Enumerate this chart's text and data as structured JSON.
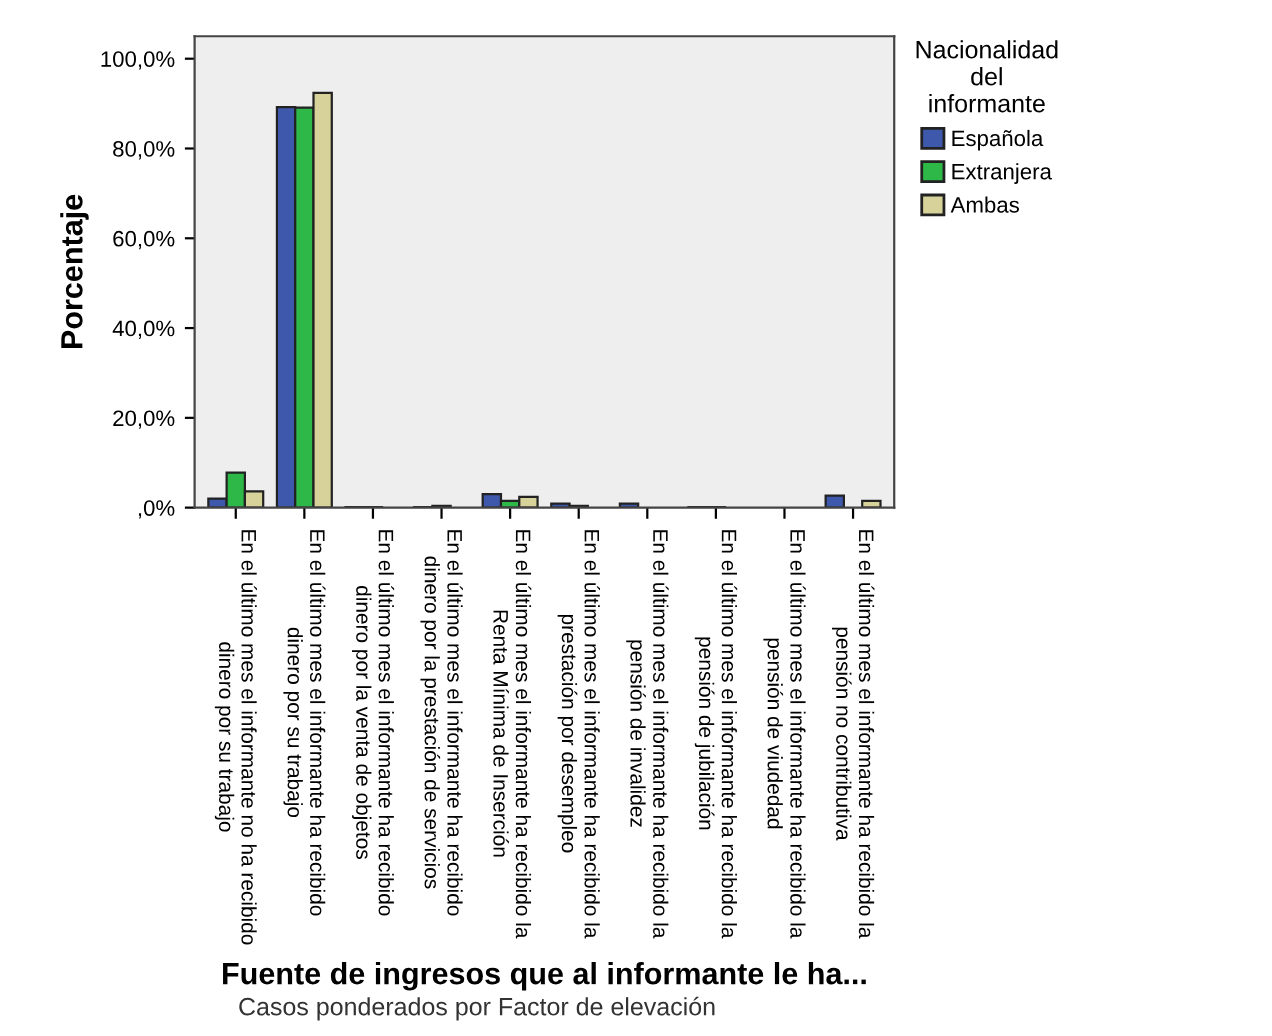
{
  "chart_data": {
    "type": "bar",
    "ylabel": "Porcentaje",
    "xlabel": "Fuente de ingresos que al informante le ha...",
    "legend_title": "Nacionalidad\ndel\ninformante",
    "categories": [
      "En el último mes el informante no ha recibido\ndinero por su trabajo",
      "En el último mes el informante ha recibido\ndinero por su trabajo",
      "En el último mes el informante ha recibido\ndinero por la venta de objetos",
      "En el último mes el informante ha recibido\ndinero por la prestación de servicios",
      "En el último mes el informante ha recibido la\nRenta Mínima de Inserción",
      "En el último mes el informante ha recibido la\nprestación por desempleo",
      "En el último mes el informante ha recibido la\npensión de invalidez",
      "En el último mes el informante ha recibido la\npensión de jubilación",
      "En el último mes el informante ha recibido la\npensión de viudedad",
      "En el último mes el informante ha recibido la\npensión no contributiva"
    ],
    "series": [
      {
        "name": "Española",
        "color": "#3e58ac",
        "values": [
          2.0,
          89.2,
          0.1,
          0.1,
          3.0,
          0.9,
          0.9,
          0.1,
          0,
          2.7
        ]
      },
      {
        "name": "Extranjera",
        "color": "#2eb848",
        "values": [
          7.8,
          89.1,
          0.1,
          0.4,
          1.5,
          0.4,
          0,
          0.1,
          0,
          0
        ]
      },
      {
        "name": "Ambas",
        "color": "#d6d29a",
        "values": [
          3.6,
          92.4,
          0,
          null,
          2.4,
          null,
          0,
          null,
          0,
          1.5
        ]
      }
    ],
    "ylim": [
      0,
      105
    ],
    "yticks": [
      {
        "value": 0,
        "label": ",0%"
      },
      {
        "value": 20,
        "label": "20,0%"
      },
      {
        "value": 40,
        "label": "40,0%"
      },
      {
        "value": 60,
        "label": "60,0%"
      },
      {
        "value": 80,
        "label": "80,0%"
      },
      {
        "value": 100,
        "label": "100,0%"
      }
    ],
    "grid": false,
    "legend": "right",
    "annotations": [
      "Casos ponderados por Factor de elevación"
    ]
  }
}
